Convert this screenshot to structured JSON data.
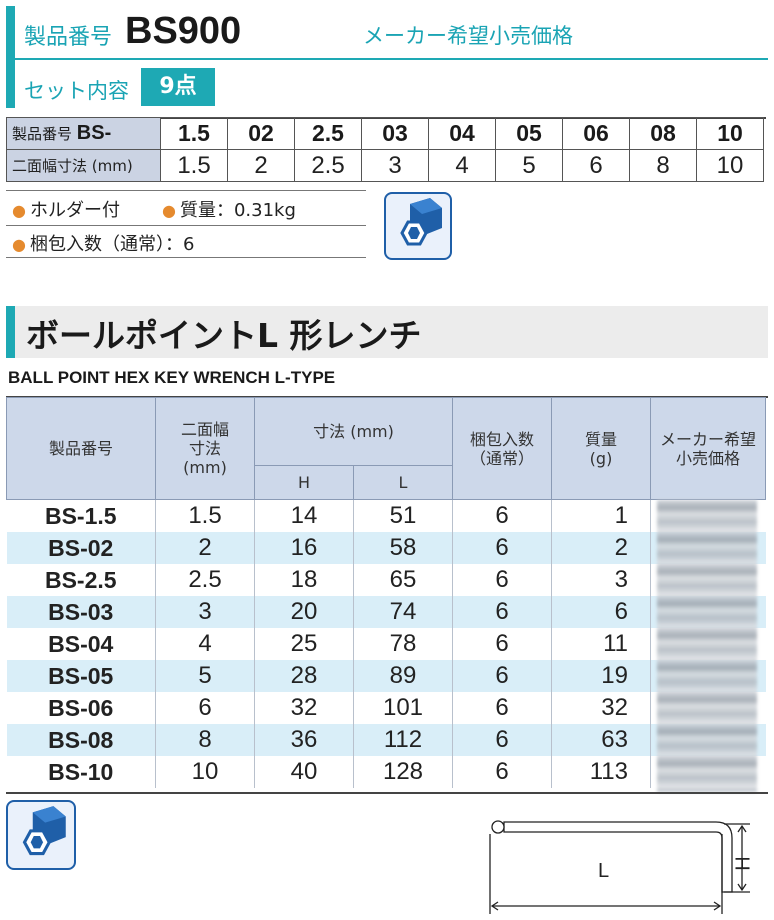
{
  "header": {
    "label": "製品番号",
    "code": "BS900",
    "price_label": "メーカー希望小売価格",
    "set_label": "セット内容",
    "set_count": "9点"
  },
  "size_table": {
    "row1_label": "製品番号",
    "row1_prefix": "BS-",
    "row2_label": "二面幅寸法 (mm)",
    "codes": [
      "1.5",
      "02",
      "2.5",
      "03",
      "04",
      "05",
      "06",
      "08",
      "10"
    ],
    "sizes": [
      "1.5",
      "2",
      "2.5",
      "3",
      "4",
      "5",
      "6",
      "8",
      "10"
    ]
  },
  "features": {
    "holder": "ホルダー付",
    "weight": "質量：0.31kg",
    "pack": "梱包入数（通常）：6"
  },
  "section": {
    "title": "ボールポイントL 形レンチ",
    "subtitle": "BALL POINT HEX KEY WRENCH L-TYPE"
  },
  "table": {
    "headers": {
      "code": "製品番号",
      "across1": "二面幅",
      "across2": "寸法",
      "across3": "(mm)",
      "dims": "寸法 (mm)",
      "h": "H",
      "l": "L",
      "pack1": "梱包入数",
      "pack2": "（通常）",
      "weight1": "質量",
      "weight2": "(g)",
      "price1": "メーカー希望",
      "price2": "小売価格"
    },
    "rows": [
      {
        "code": "BS-1.5",
        "size": "1.5",
        "h": "14",
        "l": "51",
        "pack": "6",
        "weight": "1"
      },
      {
        "code": "BS-02",
        "size": "2",
        "h": "16",
        "l": "58",
        "pack": "6",
        "weight": "2"
      },
      {
        "code": "BS-2.5",
        "size": "2.5",
        "h": "18",
        "l": "65",
        "pack": "6",
        "weight": "3"
      },
      {
        "code": "BS-03",
        "size": "3",
        "h": "20",
        "l": "74",
        "pack": "6",
        "weight": "6"
      },
      {
        "code": "BS-04",
        "size": "4",
        "h": "25",
        "l": "78",
        "pack": "6",
        "weight": "11"
      },
      {
        "code": "BS-05",
        "size": "5",
        "h": "28",
        "l": "89",
        "pack": "6",
        "weight": "19"
      },
      {
        "code": "BS-06",
        "size": "6",
        "h": "32",
        "l": "101",
        "pack": "6",
        "weight": "32"
      },
      {
        "code": "BS-08",
        "size": "8",
        "h": "36",
        "l": "112",
        "pack": "6",
        "weight": "63"
      },
      {
        "code": "BS-10",
        "size": "10",
        "h": "40",
        "l": "128",
        "pack": "6",
        "weight": "113"
      }
    ]
  },
  "diagram": {
    "h_label": "H",
    "l_label": "L"
  },
  "colors": {
    "accent": "#1ea9b4",
    "header_fill": "#cdd8ea",
    "row_alt": "#d9eef8",
    "bullet": "#e58a2e"
  }
}
